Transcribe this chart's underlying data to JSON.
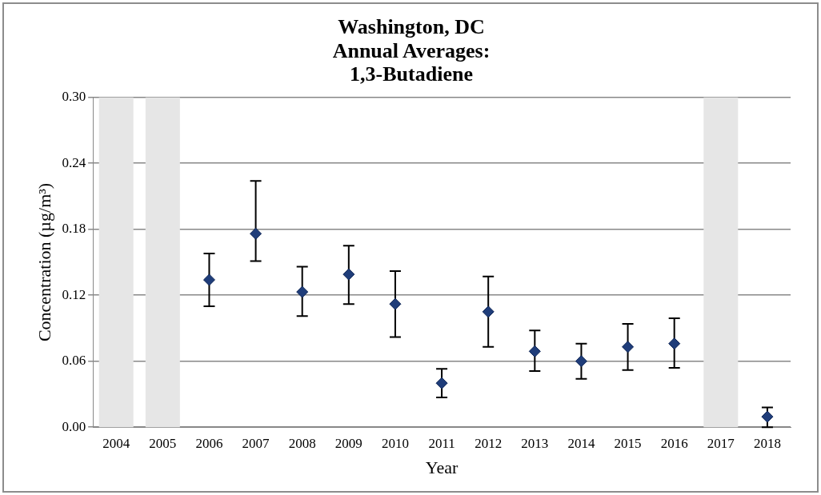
{
  "chart_data": {
    "type": "scatter",
    "title": "Washington, DC\nAnnual Averages:\n1,3-Butadiene",
    "xlabel": "Year",
    "ylabel": "Concentration (µg/m³)",
    "categories": [
      "2004",
      "2005",
      "2006",
      "2007",
      "2008",
      "2009",
      "2010",
      "2011",
      "2012",
      "2013",
      "2014",
      "2015",
      "2016",
      "2017",
      "2018"
    ],
    "series": [
      {
        "color": "#1f3d7a",
        "values": [
          null,
          null,
          0.134,
          0.176,
          0.123,
          0.139,
          0.112,
          0.04,
          0.105,
          0.069,
          0.06,
          0.073,
          0.076,
          null,
          0.0095
        ],
        "errors": [
          null,
          null,
          [
            0.11,
            0.158
          ],
          [
            0.151,
            0.224
          ],
          [
            0.101,
            0.146
          ],
          [
            0.112,
            0.165
          ],
          [
            0.082,
            0.142
          ],
          [
            0.027,
            0.053
          ],
          [
            0.073,
            0.137
          ],
          [
            0.051,
            0.088
          ],
          [
            0.044,
            0.076
          ],
          [
            0.052,
            0.094
          ],
          [
            0.054,
            0.099
          ],
          null,
          [
            0.0,
            0.018
          ]
        ]
      }
    ],
    "ylim": [
      0,
      0.3
    ],
    "yticks": [
      {
        "value": 0,
        "label": "0.00"
      },
      {
        "value": 0.06,
        "label": "0.06"
      },
      {
        "value": 0.12,
        "label": "0.12"
      },
      {
        "value": 0.18,
        "label": "0.18"
      },
      {
        "value": 0.24,
        "label": "0.24"
      },
      {
        "value": 0.3,
        "label": "0.30"
      }
    ],
    "bands": [
      {
        "axis": "x",
        "from": "2004",
        "to": "2004",
        "color": "#e6e6e6"
      },
      {
        "axis": "x",
        "from": "2005",
        "to": "2005",
        "color": "#e6e6e6"
      },
      {
        "axis": "x",
        "from": "2017",
        "to": "2017",
        "color": "#e6e6e6"
      }
    ],
    "grid": "y",
    "marker": "diamond",
    "legend": false
  }
}
